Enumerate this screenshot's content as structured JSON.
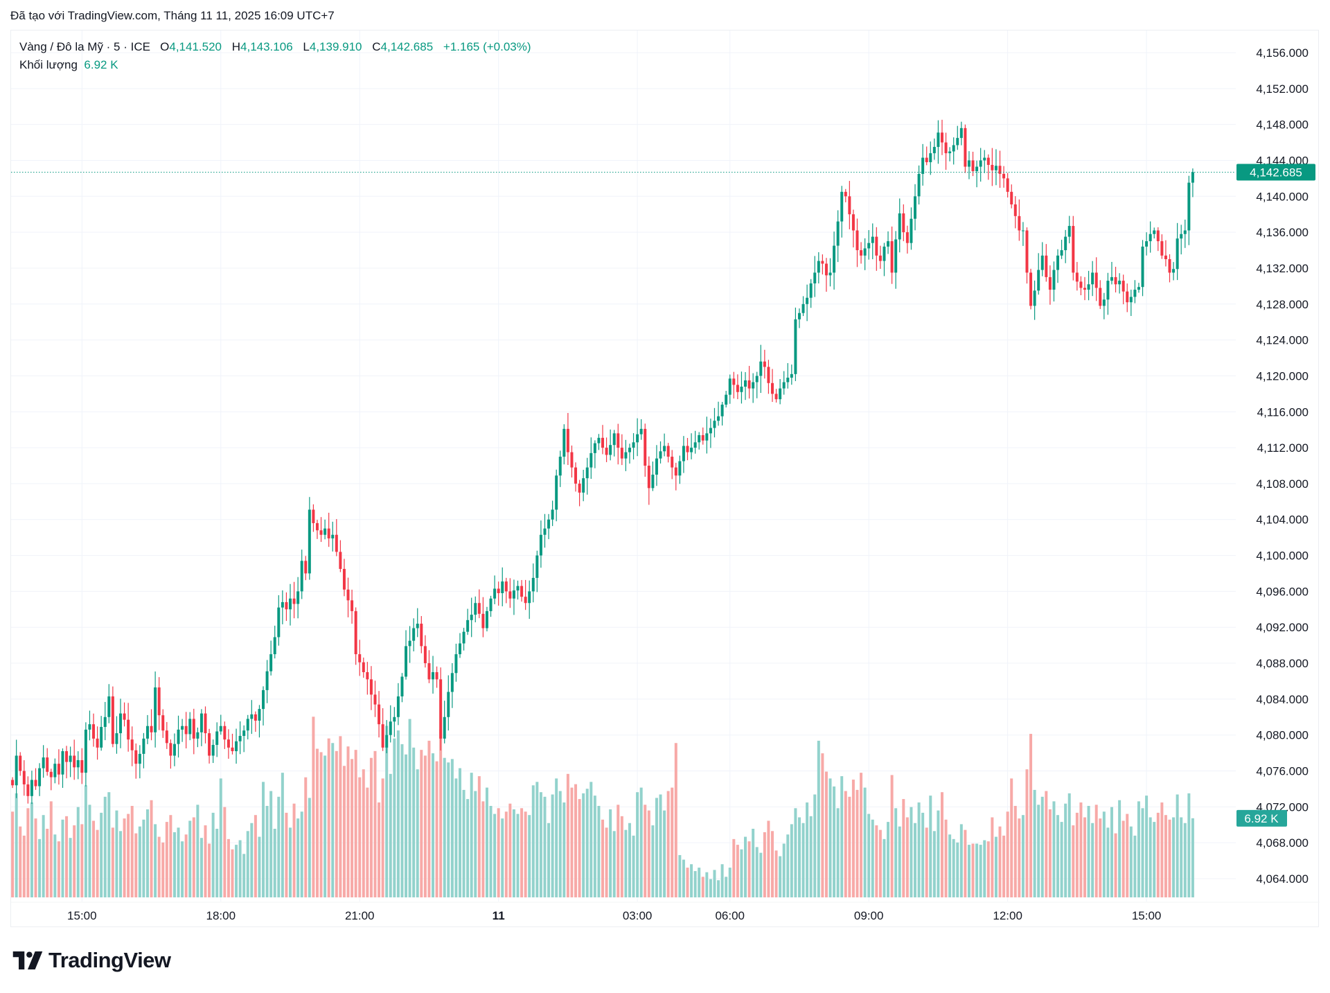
{
  "caption": "Đã tạo với TradingView.com, Tháng 11 11, 2025 16:09 UTC+7",
  "legend": {
    "symbol": "Vàng / Đô la Mỹ · 5 · ICE",
    "o_label": "O",
    "o": "4,141.520",
    "h_label": "H",
    "h": "4,143.106",
    "l_label": "L",
    "l": "4,139.910",
    "c_label": "C",
    "c": "4,142.685",
    "change": "+1.165 (+0.03%)",
    "volume_label": "Khối lượng",
    "volume": "6.92 K"
  },
  "logo": {
    "text": "TradingView",
    "icon": "tradingview-logo-icon"
  },
  "chart_data": {
    "type": "candlestick",
    "interval_minutes": 5,
    "colors": {
      "up": "#089981",
      "down": "#f23645",
      "volume_up": "#92d2cc",
      "volume_down": "#f7a9a7",
      "grid": "#f0f3fa",
      "last_price": "#089981"
    },
    "grid": true,
    "ylim": [
      4062,
      4158
    ],
    "y_ticks": [
      "4,156.000",
      "4,152.000",
      "4,148.000",
      "4,144.000",
      "4,140.000",
      "4,136.000",
      "4,132.000",
      "4,128.000",
      "4,124.000",
      "4,120.000",
      "4,116.000",
      "4,112.000",
      "4,108.000",
      "4,104.000",
      "4,100.000",
      "4,096.000",
      "4,092.000",
      "4,088.000",
      "4,084.000",
      "4,080.000",
      "4,076.000",
      "4,072.000",
      "4,068.000",
      "4,064.000"
    ],
    "x_ticks": [
      {
        "label": "15:00",
        "bar": 18,
        "bold": false
      },
      {
        "label": "18:00",
        "bar": 54,
        "bold": false
      },
      {
        "label": "21:00",
        "bar": 90,
        "bold": false
      },
      {
        "label": "11",
        "bar": 126,
        "bold": true
      },
      {
        "label": "03:00",
        "bar": 162,
        "bold": false
      },
      {
        "label": "06:00",
        "bar": 186,
        "bold": false
      },
      {
        "label": "09:00",
        "bar": 222,
        "bold": false
      },
      {
        "label": "12:00",
        "bar": 258,
        "bold": false
      },
      {
        "label": "15:00",
        "bar": 294,
        "bold": false
      }
    ],
    "last_price": 4142.685,
    "last_price_label": "4,142.685",
    "last_volume_label": "6.92 K",
    "first_open": 4075.0,
    "last_bar": {
      "open": 4141.52,
      "high": 4143.106,
      "low": 4139.91,
      "close": 4142.685,
      "volume_k": 6.92
    },
    "closes": [
      4074.4,
      4077.7,
      4076.0,
      4074.5,
      4073.2,
      4075.0,
      4074.3,
      4076.3,
      4077.5,
      4075.9,
      4075.3,
      4076.8,
      4075.6,
      4078.2,
      4077.0,
      4077.7,
      4076.4,
      4077.2,
      4075.8,
      4080.6,
      4081.2,
      4079.6,
      4078.6,
      4080.9,
      4082.0,
      4084.3,
      4079.0,
      4080.2,
      4082.4,
      4081.7,
      4079.5,
      4078.3,
      4076.8,
      4077.9,
      4079.6,
      4081.0,
      4080.3,
      4085.3,
      4082.2,
      4080.5,
      4079.1,
      4077.7,
      4079.0,
      4080.6,
      4081.0,
      4080.1,
      4081.8,
      4079.6,
      4080.3,
      4082.4,
      4080.2,
      4077.7,
      4078.9,
      4080.4,
      4081.0,
      4079.5,
      4078.6,
      4078.2,
      4079.3,
      4079.9,
      4080.5,
      4081.8,
      4082.3,
      4081.6,
      4082.9,
      4085.0,
      4087.1,
      4089.0,
      4090.9,
      4094.2,
      4094.8,
      4094.0,
      4095.2,
      4094.6,
      4096.0,
      4099.4,
      4098.0,
      4105.1,
      4103.6,
      4102.8,
      4102.3,
      4103.0,
      4101.9,
      4102.3,
      4100.4,
      4098.5,
      4096.2,
      4095.0,
      4093.8,
      4089.0,
      4088.1,
      4087.0,
      4086.2,
      4084.5,
      4083.4,
      4081.2,
      4078.6,
      4080.0,
      4081.5,
      4082.0,
      4084.3,
      4086.5,
      4089.9,
      4090.5,
      4091.9,
      4092.4,
      4089.9,
      4088.0,
      4086.2,
      4087.0,
      4086.2,
      4079.6,
      4082.0,
      4084.8,
      4086.9,
      4089.0,
      4090.2,
      4091.5,
      4092.8,
      4093.4,
      4094.7,
      4093.5,
      4091.9,
      4093.8,
      4095.2,
      4096.3,
      4095.8,
      4097.1,
      4096.0,
      4095.2,
      4096.1,
      4096.6,
      4095.4,
      4094.7,
      4096.0,
      4097.5,
      4100.0,
      4102.3,
      4103.0,
      4104.0,
      4105.1,
      4108.9,
      4111.0,
      4114.1,
      4111.5,
      4109.8,
      4108.0,
      4107.0,
      4108.6,
      4109.8,
      4111.4,
      4112.5,
      4113.1,
      4112.0,
      4111.2,
      4112.3,
      4113.6,
      4112.0,
      4110.8,
      4111.5,
      4112.0,
      4112.6,
      4113.5,
      4114.1,
      4110.0,
      4107.5,
      4109.0,
      4110.8,
      4111.6,
      4112.2,
      4111.0,
      4109.8,
      4108.9,
      4110.5,
      4112.2,
      4111.5,
      4112.0,
      4112.6,
      4113.4,
      4112.8,
      4113.6,
      4114.2,
      4115.0,
      4115.5,
      4116.8,
      4117.9,
      4119.7,
      4119.0,
      4118.2,
      4118.8,
      4119.5,
      4118.6,
      4119.3,
      4120.0,
      4121.6,
      4121.0,
      4119.2,
      4118.0,
      4117.4,
      4118.6,
      4119.3,
      4119.8,
      4120.2,
      4126.3,
      4127.0,
      4128.0,
      4128.7,
      4130.3,
      4131.5,
      4132.8,
      4132.5,
      4131.2,
      4131.5,
      4134.5,
      4137.2,
      4140.5,
      4140.0,
      4138.0,
      4136.2,
      4134.0,
      4133.4,
      4134.2,
      4134.8,
      4135.5,
      4133.4,
      4132.8,
      4134.4,
      4135.0,
      4131.5,
      4135.2,
      4138.1,
      4136.0,
      4134.8,
      4137.5,
      4140.0,
      4142.5,
      4144.3,
      4143.8,
      4144.8,
      4145.5,
      4147.1,
      4146.0,
      4144.8,
      4145.0,
      4145.7,
      4146.5,
      4147.6,
      4143.3,
      4144.0,
      4142.8,
      4143.3,
      4144.0,
      4144.3,
      4143.5,
      4142.9,
      4143.4,
      4142.5,
      4142.0,
      4140.5,
      4139.1,
      4137.8,
      4136.2,
      4136.2,
      4131.5,
      4127.8,
      4129.5,
      4131.8,
      4133.4,
      4131.0,
      4129.6,
      4131.8,
      4133.4,
      4134.0,
      4135.5,
      4136.7,
      4131.5,
      4130.5,
      4129.8,
      4129.6,
      4130.2,
      4131.5,
      4129.8,
      4127.8,
      4128.5,
      4130.6,
      4131.0,
      4130.2,
      4130.6,
      4129.4,
      4128.2,
      4128.8,
      4129.6,
      4129.9,
      4134.4,
      4135.0,
      4135.8,
      4136.2,
      4135.0,
      4133.4,
      4133.0,
      4131.5,
      4131.9,
      4135.3,
      4135.8,
      4136.2,
      4141.52,
      4142.685
    ],
    "volumes_k": [
      7.5,
      9.1,
      6.2,
      5.4,
      7.8,
      8.3,
      6.9,
      5.1,
      7.2,
      6.0,
      8.4,
      5.5,
      4.9,
      6.8,
      7.1,
      5.2,
      6.3,
      7.9,
      6.4,
      9.8,
      8.1,
      6.7,
      5.9,
      7.4,
      8.8,
      9.2,
      6.1,
      7.6,
      5.8,
      6.9,
      7.3,
      8.0,
      5.6,
      6.2,
      6.8,
      7.7,
      8.5,
      6.4,
      5.3,
      4.8,
      6.6,
      7.2,
      5.7,
      6.1,
      4.9,
      5.5,
      6.7,
      7.0,
      8.1,
      5.2,
      6.3,
      4.7,
      7.4,
      6.0,
      10.4,
      7.9,
      5.1,
      4.2,
      4.6,
      5.0,
      3.8,
      5.8,
      6.5,
      7.2,
      5.3,
      10.1,
      8.0,
      9.3,
      6.0,
      8.8,
      10.9,
      7.4,
      6.1,
      8.2,
      6.9,
      7.5,
      10.5,
      8.7,
      15.8,
      13.0,
      12.7,
      12.4,
      13.9,
      13.5,
      12.8,
      14.1,
      11.5,
      13.2,
      12.1,
      12.9,
      10.5,
      11.2,
      9.6,
      12.2,
      12.8,
      8.3,
      10.4,
      15.0,
      10.8,
      13.9,
      14.6,
      13.4,
      12.5,
      15.6,
      13.1,
      11.2,
      12.9,
      12.4,
      13.7,
      12.6,
      11.9,
      14.7,
      12.2,
      11.8,
      12.1,
      10.4,
      11.3,
      9.4,
      8.6,
      10.9,
      9.3,
      10.6,
      8.4,
      9.6,
      8.0,
      7.3,
      7.8,
      6.9,
      7.5,
      8.2,
      7.7,
      7.3,
      7.8,
      7.5,
      7.2,
      9.8,
      10.1,
      9.2,
      8.8,
      6.5,
      9.0,
      10.4,
      9.3,
      8.3,
      10.8,
      9.6,
      9.9,
      8.6,
      9.1,
      9.5,
      10.1,
      8.9,
      8.0,
      6.8,
      6.1,
      7.7,
      5.8,
      8.1,
      7.1,
      5.9,
      6.5,
      5.4,
      9.2,
      9.6,
      8.1,
      7.6,
      6.3,
      8.7,
      9.0,
      7.6,
      9.3,
      9.6,
      13.5,
      3.7,
      3.3,
      2.6,
      2.9,
      2.3,
      2.6,
      1.8,
      2.2,
      1.6,
      2.4,
      1.5,
      2.9,
      1.8,
      2.6,
      5.1,
      4.6,
      4.2,
      5.3,
      4.9,
      6.0,
      4.4,
      3.9,
      5.7,
      6.7,
      5.8,
      4.1,
      3.6,
      4.7,
      5.5,
      6.4,
      7.8,
      7.0,
      6.5,
      8.3,
      7.1,
      9.0,
      13.7,
      12.6,
      11.0,
      10.4,
      9.7,
      7.8,
      10.6,
      9.3,
      8.8,
      10.3,
      9.4,
      10.9,
      9.6,
      7.3,
      6.8,
      6.3,
      5.9,
      5.1,
      6.6,
      10.7,
      7.8,
      6.2,
      8.6,
      7.0,
      7.9,
      6.5,
      8.3,
      7.4,
      6.1,
      8.9,
      5.8,
      7.6,
      9.2,
      6.8,
      5.5,
      5.1,
      4.8,
      6.4,
      5.9,
      4.6,
      4.7,
      4.7,
      4.6,
      5.0,
      4.9,
      7.0,
      5.3,
      6.2,
      5.4,
      7.5,
      10.4,
      8.0,
      6.9,
      7.2,
      11.2,
      14.3,
      9.4,
      8.1,
      8.8,
      9.3,
      7.7,
      8.4,
      7.2,
      6.6,
      8.2,
      9.1,
      6.3,
      7.4,
      8.3,
      7.0,
      8.0,
      6.5,
      8.1,
      6.9,
      7.5,
      6.1,
      7.9,
      5.6,
      8.5,
      6.7,
      7.3,
      6.2,
      5.4,
      8.4,
      7.8,
      8.9,
      7.0,
      6.6,
      7.4,
      8.3,
      7.2,
      6.8,
      7.0,
      9.0,
      7.0,
      6.5,
      9.1,
      6.92
    ]
  }
}
